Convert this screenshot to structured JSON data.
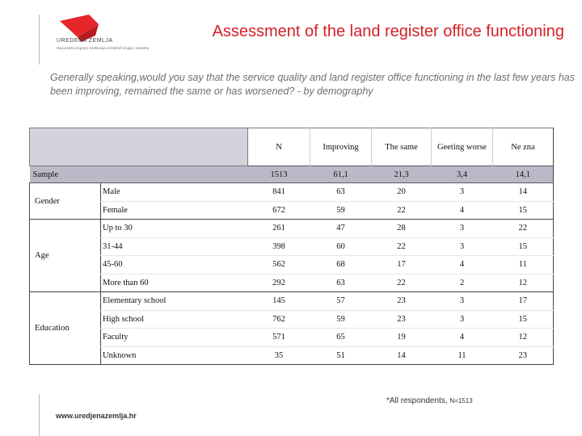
{
  "header": {
    "logo_text": "UREDENA ZEMLJA",
    "logo_subtext": "Nacionalni program sređivanja zemljišnih knjiga i katastra",
    "title": "Assessment of the land register office functioning"
  },
  "question": "Generally speaking,would you say that the service quality and land register office functioning in the last few years has been improving, remained the same or has worsened? - by demography",
  "table": {
    "columns": [
      "N",
      "Improving",
      "The same",
      "Geeting worse",
      "Ne zna"
    ],
    "sample": {
      "label": "Sample",
      "values": [
        "1513",
        "61,1",
        "21,3",
        "3,4",
        "14,1"
      ]
    },
    "groups": [
      {
        "label": "Gender",
        "rows": [
          {
            "label": "Male",
            "values": [
              "841",
              "63",
              "20",
              "3",
              "14"
            ]
          },
          {
            "label": "Female",
            "values": [
              "672",
              "59",
              "22",
              "4",
              "15"
            ]
          }
        ]
      },
      {
        "label": "Age",
        "rows": [
          {
            "label": "Up to 30",
            "values": [
              "261",
              "47",
              "28",
              "3",
              "22"
            ]
          },
          {
            "label": "31-44",
            "values": [
              "398",
              "60",
              "22",
              "3",
              "15"
            ]
          },
          {
            "label": "45-60",
            "values": [
              "562",
              "68",
              "17",
              "4",
              "11"
            ]
          },
          {
            "label": "More than 60",
            "values": [
              "292",
              "63",
              "22",
              "2",
              "12"
            ]
          }
        ]
      },
      {
        "label": "Education",
        "rows": [
          {
            "label": "Elementary school",
            "values": [
              "145",
              "57",
              "23",
              "3",
              "17"
            ]
          },
          {
            "label": "High school",
            "values": [
              "762",
              "59",
              "23",
              "3",
              "15"
            ]
          },
          {
            "label": "Faculty",
            "values": [
              "571",
              "65",
              "19",
              "4",
              "12"
            ]
          },
          {
            "label": "Unknown",
            "values": [
              "35",
              "51",
              "14",
              "11",
              "23"
            ]
          }
        ]
      }
    ]
  },
  "footnote": {
    "main": "*All respondents,",
    "small": "N=1513"
  },
  "footer_url": "www.uredjenazemlja.hr",
  "colors": {
    "title": "#d42027",
    "header_bg": "#d3d3dc",
    "sample_bg": "#b9b9c8"
  }
}
